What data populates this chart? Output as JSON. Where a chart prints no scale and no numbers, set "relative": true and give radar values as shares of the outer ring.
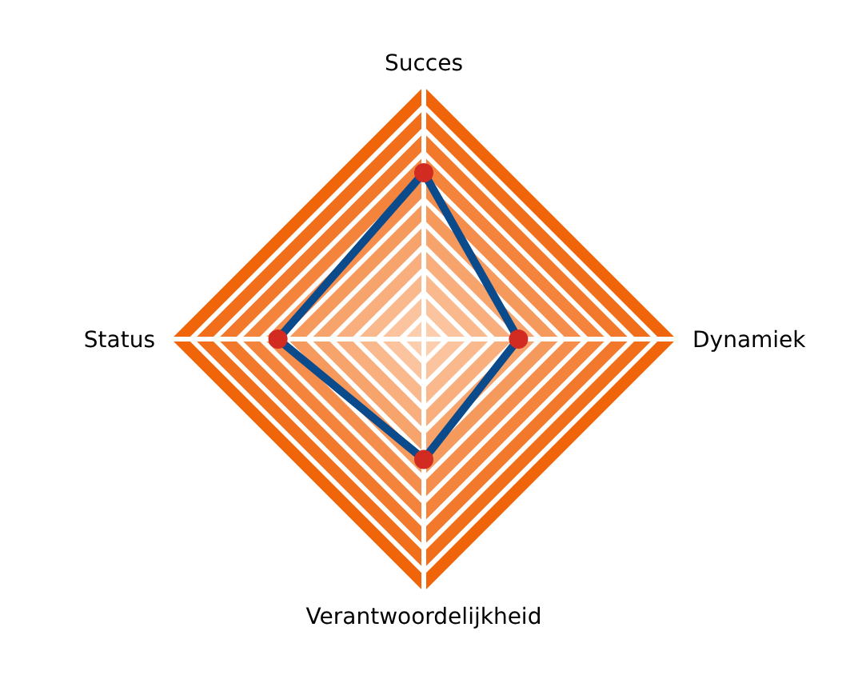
{
  "chart_data": {
    "type": "radar",
    "relative": true,
    "categories": [
      "Succes",
      "Dynamiek",
      "Verantwoordelijkheid",
      "Status"
    ],
    "grid": true,
    "marker": "circle",
    "series": [
      {
        "color": "#0b4a8b",
        "colors": [
          "#d22b22",
          "#d22b22",
          "#d22b22",
          "#d22b22"
        ],
        "values": [
          0.65,
          0.37,
          0.47,
          0.57
        ]
      }
    ]
  }
}
